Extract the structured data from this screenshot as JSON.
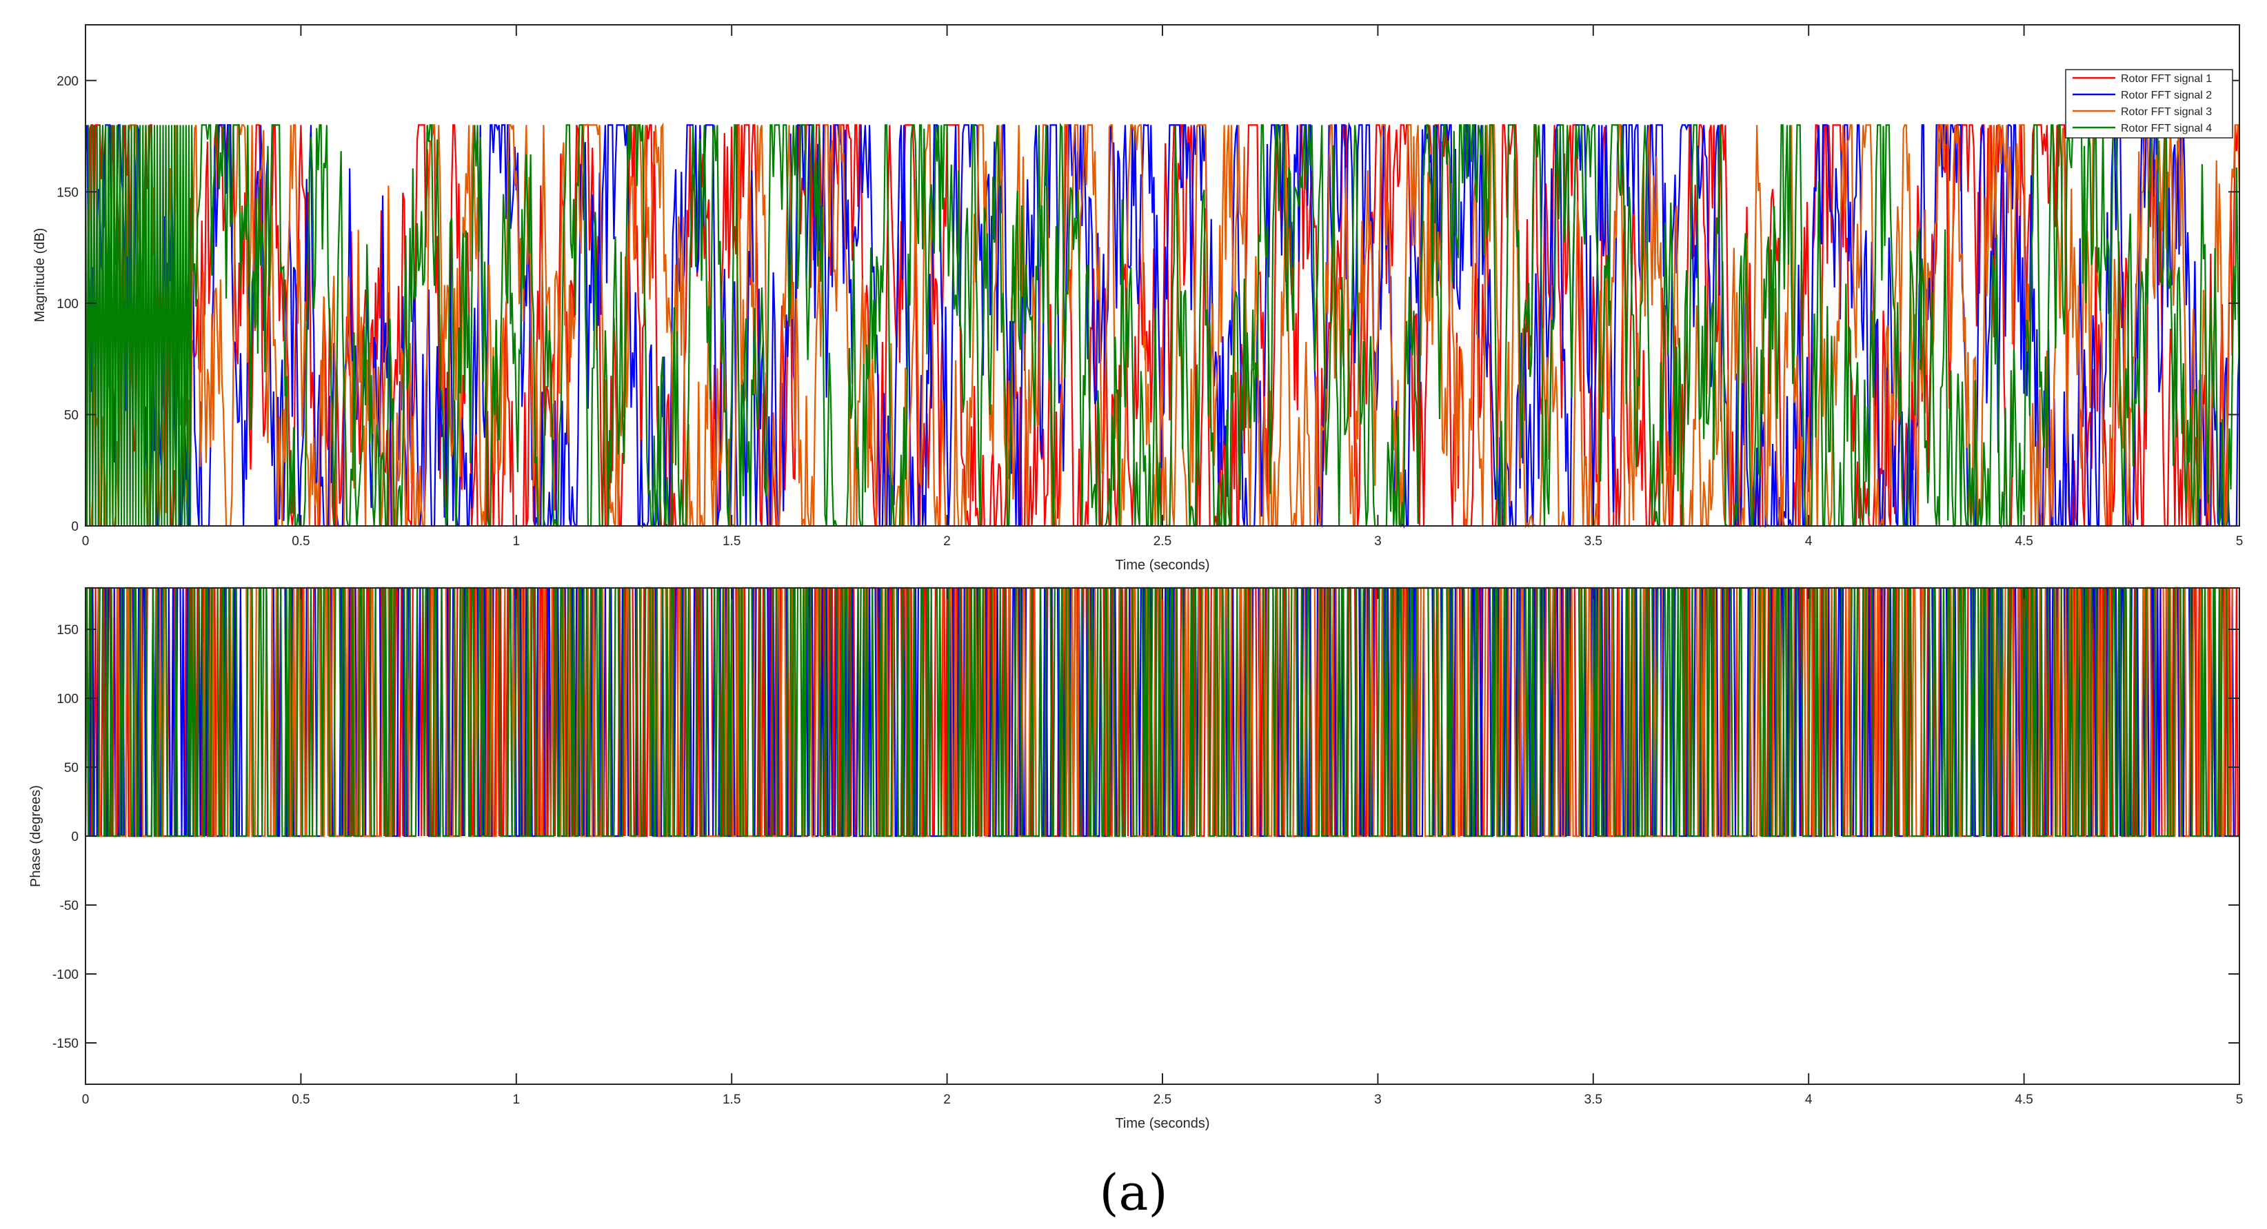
{
  "chart_data": [
    {
      "type": "line",
      "xlabel": "Time (seconds)",
      "ylabel": "Magnitude (dB)",
      "xlim": [
        0,
        5
      ],
      "ylim": [
        0,
        225
      ],
      "xticks": [
        0,
        0.5,
        1,
        1.5,
        2,
        2.5,
        3,
        3.5,
        4,
        4.5,
        5
      ],
      "xtick_labels": [
        "0",
        "0.5",
        "1",
        "1.5",
        "2",
        "2.5",
        "3",
        "3.5",
        "4",
        "4.5",
        "5"
      ],
      "yticks": [
        0,
        50,
        100,
        150,
        200
      ],
      "ytick_labels": [
        "0",
        "50",
        "100",
        "150",
        "200"
      ],
      "grid": false,
      "legend_position": "top-right",
      "note_values": "signals oscillate densely between 0 and 180 across the full time range",
      "series": [
        {
          "name": "Rotor FFT signal 1",
          "color": "#ff0000",
          "range": [
            0,
            180
          ]
        },
        {
          "name": "Rotor FFT signal 2",
          "color": "#0000ff",
          "range": [
            0,
            180
          ]
        },
        {
          "name": "Rotor FFT signal 3",
          "color": "#e65c00",
          "range": [
            0,
            180
          ]
        },
        {
          "name": "Rotor FFT signal 4",
          "color": "#007f00",
          "range": [
            0,
            180
          ]
        }
      ]
    },
    {
      "type": "line",
      "xlabel": "Time (seconds)",
      "ylabel": "Phase (degrees)",
      "xlim": [
        0,
        5
      ],
      "ylim": [
        -180,
        180
      ],
      "xticks": [
        0,
        0.5,
        1,
        1.5,
        2,
        2.5,
        3,
        3.5,
        4,
        4.5,
        5
      ],
      "xtick_labels": [
        "0",
        "0.5",
        "1",
        "1.5",
        "2",
        "2.5",
        "3",
        "3.5",
        "4",
        "4.5",
        "5"
      ],
      "yticks": [
        -150,
        -100,
        -50,
        0,
        50,
        100,
        150
      ],
      "ytick_labels": [
        "-150",
        "-100",
        "-50",
        "0",
        "50",
        "100",
        "150"
      ],
      "grid": false,
      "series": [
        {
          "name": "Rotor FFT signal 1",
          "color": "#ff0000",
          "levels": [
            0,
            180
          ]
        },
        {
          "name": "Rotor FFT signal 2",
          "color": "#0000ff",
          "levels": [
            0,
            180
          ]
        },
        {
          "name": "Rotor FFT signal 3",
          "color": "#e65c00",
          "levels": [
            0,
            180
          ]
        },
        {
          "name": "Rotor FFT signal 4",
          "color": "#007f00",
          "levels": [
            0,
            180
          ]
        }
      ]
    }
  ],
  "caption": "(a)"
}
